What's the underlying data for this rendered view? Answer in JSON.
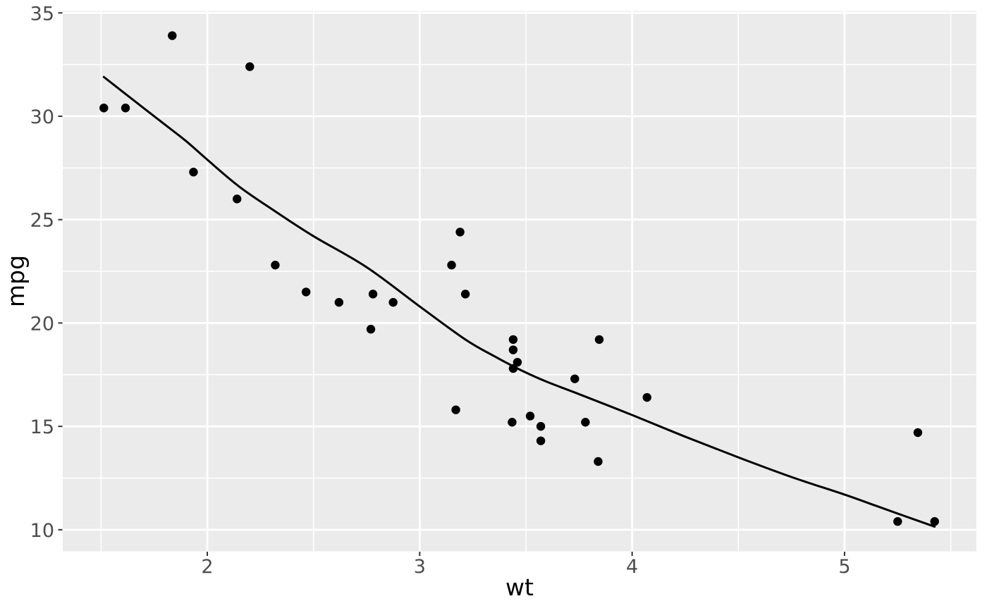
{
  "chart_data": {
    "type": "scatter",
    "title": "",
    "xlabel": "wt",
    "ylabel": "mpg",
    "legend": "none",
    "grid": "on",
    "xlim": [
      1.3196,
      5.6207
    ],
    "ylim": [
      8.955,
      35.095
    ],
    "x_major_ticks": [
      2,
      3,
      4,
      5
    ],
    "y_major_ticks": [
      10,
      15,
      20,
      25,
      30,
      35
    ],
    "x_minor_ticks": [
      1.5,
      2.5,
      3.5,
      4.5,
      5.5
    ],
    "y_minor_ticks": [
      12.5,
      17.5,
      22.5,
      27.5,
      32.5
    ],
    "x_tick_labels": [
      "2",
      "3",
      "4",
      "5"
    ],
    "y_tick_labels": [
      "10",
      "15",
      "20",
      "25",
      "30",
      "35"
    ],
    "points": [
      [
        2.62,
        21.0
      ],
      [
        2.875,
        21.0
      ],
      [
        2.32,
        22.8
      ],
      [
        3.215,
        21.4
      ],
      [
        3.44,
        18.7
      ],
      [
        3.46,
        18.1
      ],
      [
        3.57,
        14.3
      ],
      [
        3.19,
        24.4
      ],
      [
        3.15,
        22.8
      ],
      [
        3.44,
        19.2
      ],
      [
        3.44,
        17.8
      ],
      [
        4.07,
        16.4
      ],
      [
        3.73,
        17.3
      ],
      [
        3.78,
        15.2
      ],
      [
        5.25,
        10.4
      ],
      [
        5.424,
        10.4
      ],
      [
        5.345,
        14.7
      ],
      [
        2.2,
        32.4
      ],
      [
        1.615,
        30.4
      ],
      [
        1.835,
        33.9
      ],
      [
        2.465,
        21.5
      ],
      [
        3.52,
        15.5
      ],
      [
        3.435,
        15.2
      ],
      [
        3.84,
        13.3
      ],
      [
        3.845,
        19.2
      ],
      [
        1.935,
        27.3
      ],
      [
        2.14,
        26.0
      ],
      [
        1.513,
        30.4
      ],
      [
        3.17,
        15.8
      ],
      [
        2.77,
        19.7
      ],
      [
        3.57,
        15.0
      ],
      [
        2.78,
        21.4
      ]
    ],
    "smooth_line": [
      [
        1.513,
        31.9
      ],
      [
        1.6,
        31.2
      ],
      [
        1.7,
        30.4
      ],
      [
        1.8,
        29.6
      ],
      [
        1.9,
        28.8
      ],
      [
        2.0,
        27.9
      ],
      [
        2.15,
        26.6
      ],
      [
        2.32,
        25.4
      ],
      [
        2.5,
        24.2
      ],
      [
        2.75,
        22.7
      ],
      [
        3.0,
        20.8
      ],
      [
        3.215,
        19.2
      ],
      [
        3.35,
        18.4
      ],
      [
        3.48,
        17.7
      ],
      [
        3.6,
        17.15
      ],
      [
        3.74,
        16.6
      ],
      [
        4.0,
        15.55
      ],
      [
        4.25,
        14.5
      ],
      [
        4.5,
        13.5
      ],
      [
        4.75,
        12.55
      ],
      [
        5.0,
        11.7
      ],
      [
        5.15,
        11.15
      ],
      [
        5.3,
        10.6
      ],
      [
        5.424,
        10.15
      ]
    ],
    "style": {
      "panel_bg": "#EBEBEB",
      "outer_bg": "#FFFFFF",
      "grid_color": "#FFFFFF",
      "point_color": "#000000",
      "line_color": "#000000",
      "tick_label_color": "#4D4D4D",
      "axis_title_color": "#000000",
      "tick_mark_color": "#333333"
    }
  }
}
